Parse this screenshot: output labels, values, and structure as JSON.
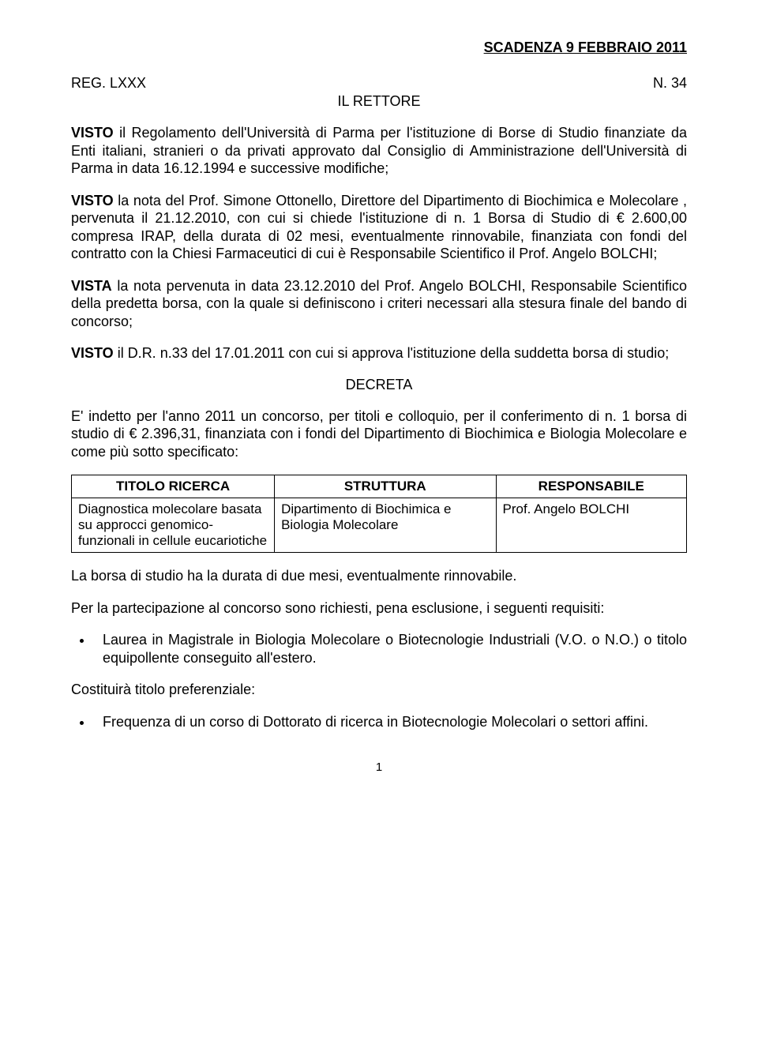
{
  "header": {
    "deadline": "SCADENZA 9 FEBBRAIO 2011",
    "reg_left": "REG. LXXX",
    "reg_right": "N. 34",
    "il_rettore": "IL RETTORE"
  },
  "paragraphs": {
    "p1_lead": "VISTO",
    "p1": " il Regolamento dell'Università di Parma per l'istituzione di Borse di Studio finanziate da Enti italiani, stranieri o da privati approvato dal Consiglio di Amministrazione dell'Università di Parma in data 16.12.1994 e successive modifiche;",
    "p2_lead": "VISTO",
    "p2": " la nota del Prof. Simone Ottonello, Direttore del Dipartimento di Biochimica e Molecolare , pervenuta il 21.12.2010, con cui si chiede l'istituzione di n. 1 Borsa di Studio di € 2.600,00 compresa IRAP, della durata di 02 mesi, eventualmente rinnovabile, finanziata con fondi del contratto con la Chiesi Farmaceutici  di cui è Responsabile Scientifico il Prof. Angelo BOLCHI;",
    "p3_lead": "VISTA",
    "p3": " la nota pervenuta in data 23.12.2010 del Prof. Angelo BOLCHI, Responsabile Scientifico della predetta borsa, con la quale si definiscono i criteri necessari alla stesura finale del bando di concorso;",
    "p4_lead": "VISTO",
    "p4": " il D.R. n.33 del 17.01.2011 con cui si approva l'istituzione della suddetta borsa di studio;",
    "decreta": "DECRETA",
    "p5": "E' indetto per l'anno 2011 un concorso, per titoli e colloquio, per il conferimento di n. 1 borsa di studio di € 2.396,31, finanziata con i fondi del Dipartimento di Biochimica e Biologia Molecolare e come più sotto specificato:",
    "p6": "La borsa di studio ha la durata di due mesi, eventualmente rinnovabile.",
    "p7": "Per la partecipazione al concorso sono richiesti, pena esclusione, i seguenti requisiti:",
    "bullet1": "Laurea in Magistrale in Biologia Molecolare o Biotecnologie Industriali (V.O. o  N.O.) o titolo equipollente conseguito all'estero.",
    "p8": "Costituirà titolo preferenziale:",
    "bullet2": "Frequenza di un corso di Dottorato di ricerca in Biotecnologie Molecolari o settori affini."
  },
  "table": {
    "headers": [
      "TITOLO RICERCA",
      "STRUTTURA",
      "RESPONSABILE"
    ],
    "row": {
      "titolo": "Diagnostica molecolare basata su approcci genomico-funzionali in cellule eucariotiche",
      "struttura": "Dipartimento di Biochimica e Biologia Molecolare",
      "responsabile": "Prof. Angelo BOLCHI"
    }
  },
  "footer": {
    "page_number": "1"
  },
  "style": {
    "font_family": "Arial",
    "base_font_size_pt": 11,
    "text_color": "#000000",
    "background_color": "#ffffff",
    "table_border_color": "#000000"
  }
}
